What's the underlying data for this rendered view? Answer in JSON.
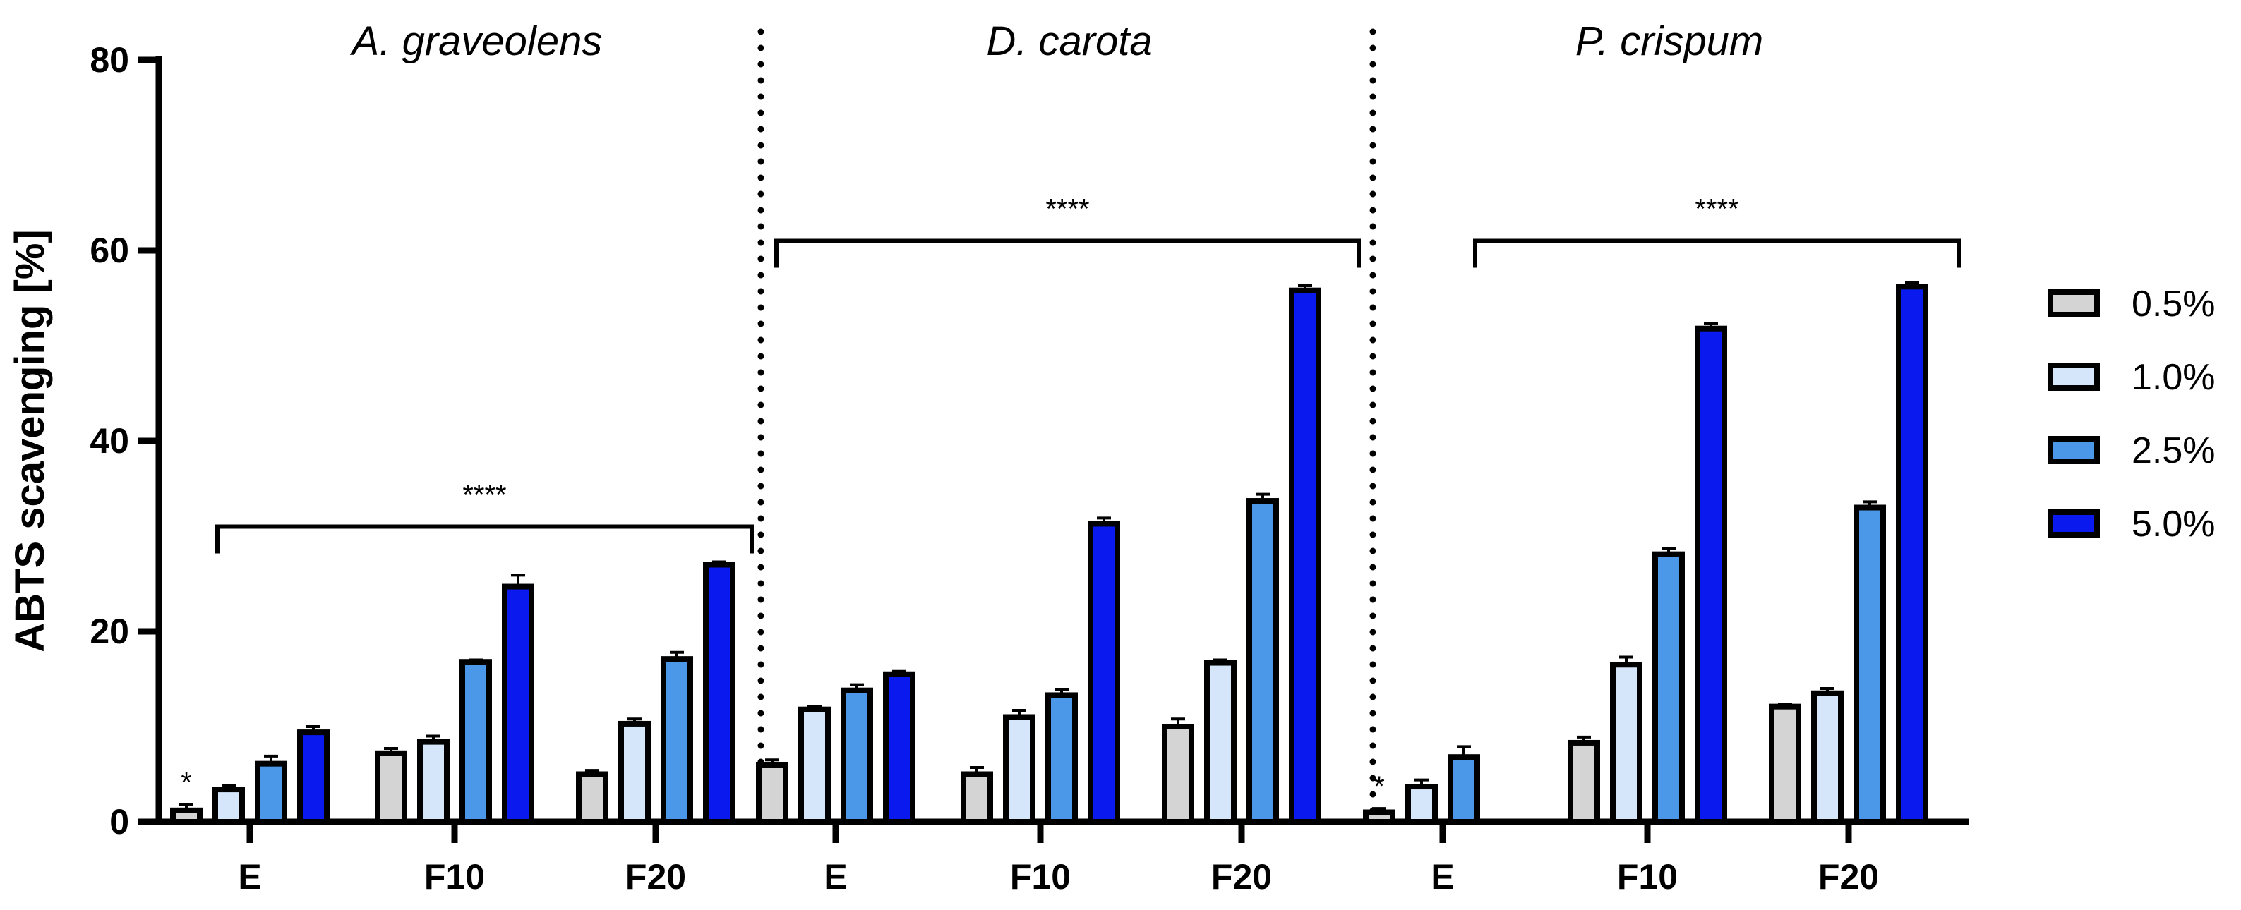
{
  "chart_data": {
    "type": "bar",
    "ylabel": "ABTS scavenging [%]",
    "xlabel": "",
    "ylim": [
      0,
      80
    ],
    "yticks": [
      0,
      20,
      40,
      60,
      80
    ],
    "grid": false,
    "legend_position": "right",
    "colors": {
      "0.5%": "#d4d4d4",
      "1.0%": "#d6e6fa",
      "2.5%": "#4b97e8",
      "5.0%": "#0a19ee"
    },
    "series_names": [
      "0.5%",
      "1.0%",
      "2.5%",
      "5.0%"
    ],
    "panels": [
      {
        "title": "A. graveolens",
        "significance": "****",
        "significance_value": 31,
        "groups": [
          {
            "label": "E",
            "values": [
              1.2,
              3.4,
              6.1,
              9.4
            ],
            "errors": [
              0.6,
              0.4,
              0.8,
              0.6
            ],
            "marks": [
              "*",
              "",
              "",
              ""
            ]
          },
          {
            "label": "F10",
            "values": [
              7.2,
              8.4,
              16.8,
              24.7
            ],
            "errors": [
              0.5,
              0.6,
              0.2,
              1.2
            ],
            "marks": [
              "",
              "",
              "",
              ""
            ]
          },
          {
            "label": "F20",
            "values": [
              5.0,
              10.3,
              17.1,
              27.0
            ],
            "errors": [
              0.4,
              0.5,
              0.7,
              0.3
            ],
            "marks": [
              "",
              "",
              "",
              ""
            ]
          }
        ]
      },
      {
        "title": "D. carota",
        "significance": "****",
        "significance_value": 61,
        "groups": [
          {
            "label": "E",
            "values": [
              6.0,
              11.8,
              13.8,
              15.5
            ],
            "errors": [
              0.5,
              0.3,
              0.6,
              0.3
            ],
            "marks": [
              "",
              "",
              "",
              ""
            ]
          },
          {
            "label": "F10",
            "values": [
              5.0,
              11.0,
              13.3,
              31.3
            ],
            "errors": [
              0.7,
              0.7,
              0.6,
              0.6
            ],
            "marks": [
              "",
              "",
              "",
              ""
            ]
          },
          {
            "label": "F20",
            "values": [
              10.0,
              16.7,
              33.7,
              55.8
            ],
            "errors": [
              0.8,
              0.3,
              0.7,
              0.5
            ],
            "marks": [
              "",
              "",
              "",
              ""
            ]
          }
        ]
      },
      {
        "title": "P. crispum",
        "significance": "****",
        "significance_value": 61,
        "groups": [
          {
            "label": "E",
            "values": [
              1.0,
              3.7,
              6.8
            ],
            "errors": [
              0.4,
              0.7,
              1.1
            ],
            "marks": [
              "*",
              "",
              ""
            ]
          },
          {
            "label": "F10",
            "values": [
              8.3,
              16.5,
              28.1,
              51.8
            ],
            "errors": [
              0.6,
              0.8,
              0.6,
              0.5
            ],
            "marks": [
              "",
              "",
              "",
              ""
            ]
          },
          {
            "label": "F20",
            "values": [
              12.1,
              13.5,
              33.0,
              56.2
            ],
            "errors": [
              0.2,
              0.5,
              0.6,
              0.4
            ],
            "marks": [
              "",
              "",
              "",
              ""
            ]
          }
        ]
      }
    ]
  }
}
